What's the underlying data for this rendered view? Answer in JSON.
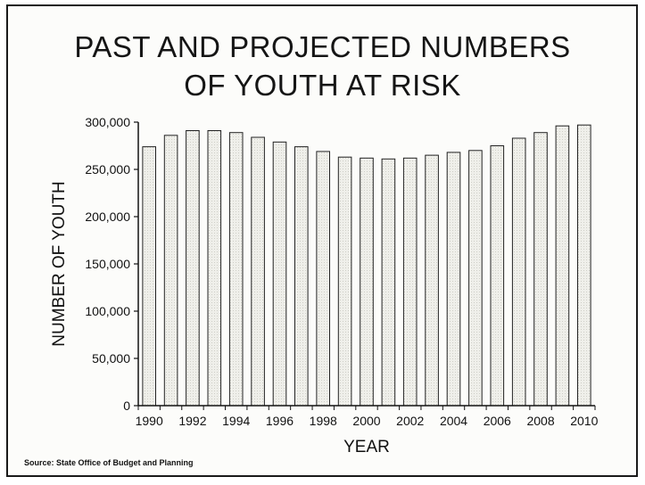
{
  "chart_data": {
    "type": "bar",
    "title": "PAST AND PROJECTED NUMBERS OF YOUTH AT RISK",
    "title_lines": [
      "PAST AND PROJECTED NUMBERS",
      "OF YOUTH AT RISK"
    ],
    "xlabel": "YEAR",
    "ylabel": "NUMBER OF YOUTH",
    "source": "Source:  State Office of Budget and Planning",
    "categories": [
      "1990",
      "1991",
      "1992",
      "1993",
      "1994",
      "1995",
      "1996",
      "1997",
      "1998",
      "1999",
      "2000",
      "2001",
      "2002",
      "2003",
      "2004",
      "2005",
      "2006",
      "2007",
      "2008",
      "2009",
      "2010"
    ],
    "x_tick_labels": [
      "1990",
      "1992",
      "1994",
      "1996",
      "1998",
      "2000",
      "2002",
      "2004",
      "2006",
      "2008",
      "2010"
    ],
    "values": [
      274000,
      286000,
      291000,
      291000,
      289000,
      284000,
      279000,
      274000,
      269000,
      263000,
      262000,
      261000,
      262000,
      265000,
      268000,
      270000,
      275000,
      283000,
      289000,
      296000,
      297000
    ],
    "ylim": [
      0,
      300000
    ],
    "y_ticks": [
      0,
      50000,
      100000,
      150000,
      200000,
      250000,
      300000
    ],
    "y_tick_labels": [
      "0",
      "50,000",
      "100,000",
      "150,000",
      "200,000",
      "250,000",
      "300,000"
    ],
    "grid": false,
    "legend": "none",
    "colors": {
      "bar_fill": "#efefea",
      "bar_stroke": "#222222",
      "axis": "#111111"
    }
  }
}
